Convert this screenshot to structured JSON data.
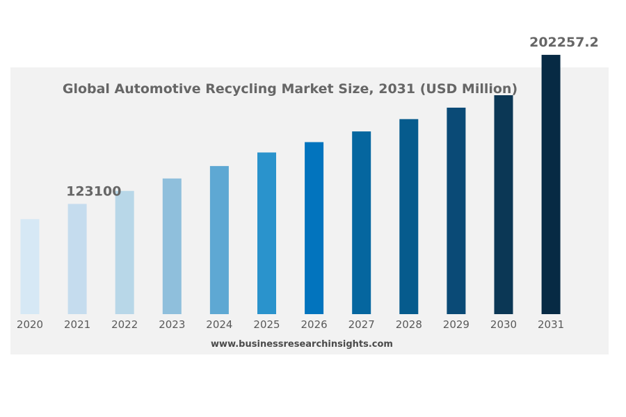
{
  "chart_data": {
    "type": "bar",
    "title": "Global Automotive Recycling Market Size, 2031 (USD Million)",
    "categories": [
      "2020",
      "2021",
      "2022",
      "2023",
      "2024",
      "2025",
      "2026",
      "2027",
      "2028",
      "2029",
      "2030",
      "2031"
    ],
    "values": [
      115000,
      123100,
      130000,
      136600,
      143200,
      150400,
      155900,
      161600,
      168100,
      174200,
      180800,
      202257.2
    ],
    "data_labels": [
      {
        "category": "2021",
        "text": "123100"
      },
      {
        "category": "2031",
        "text": "202257.2"
      }
    ],
    "colors": [
      "#d6e8f5",
      "#c5dcee",
      "#b8d7e8",
      "#8fbfdc",
      "#5ea8d3",
      "#2a93cc",
      "#0274be",
      "#05669f",
      "#065b8d",
      "#0a4a76",
      "#0b3755",
      "#072a44"
    ],
    "xlabel": "",
    "ylabel": "",
    "grid": false,
    "legend": "none",
    "source": "www.businessresearchinsights.com"
  }
}
